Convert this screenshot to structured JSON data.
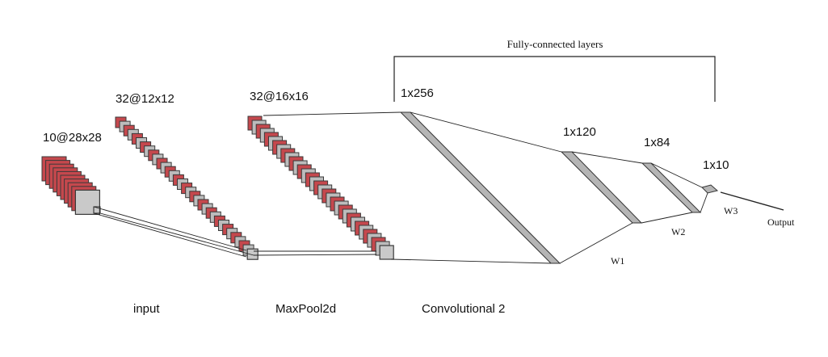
{
  "stages": {
    "input_feature": "10@28x28",
    "conv1_feature": "32@12x12",
    "pool_feature": "32@16x16",
    "fc1": "1x256",
    "fc2": "1x120",
    "fc3": "1x84",
    "fc4": "1x10"
  },
  "bottom_labels": {
    "input": "input",
    "maxpool": "MaxPool2d",
    "conv2": "Convolutional 2"
  },
  "bracket_label": "Fully-connected layers",
  "weights": {
    "w1": "W1",
    "w2": "W2",
    "w3": "W3"
  },
  "output_label": "Output",
  "colors": {
    "feature_map_red": "#c5484d",
    "feature_map_gray": "#bcbcbc",
    "fc_bar": "#b5b5b5",
    "line": "#222222"
  }
}
